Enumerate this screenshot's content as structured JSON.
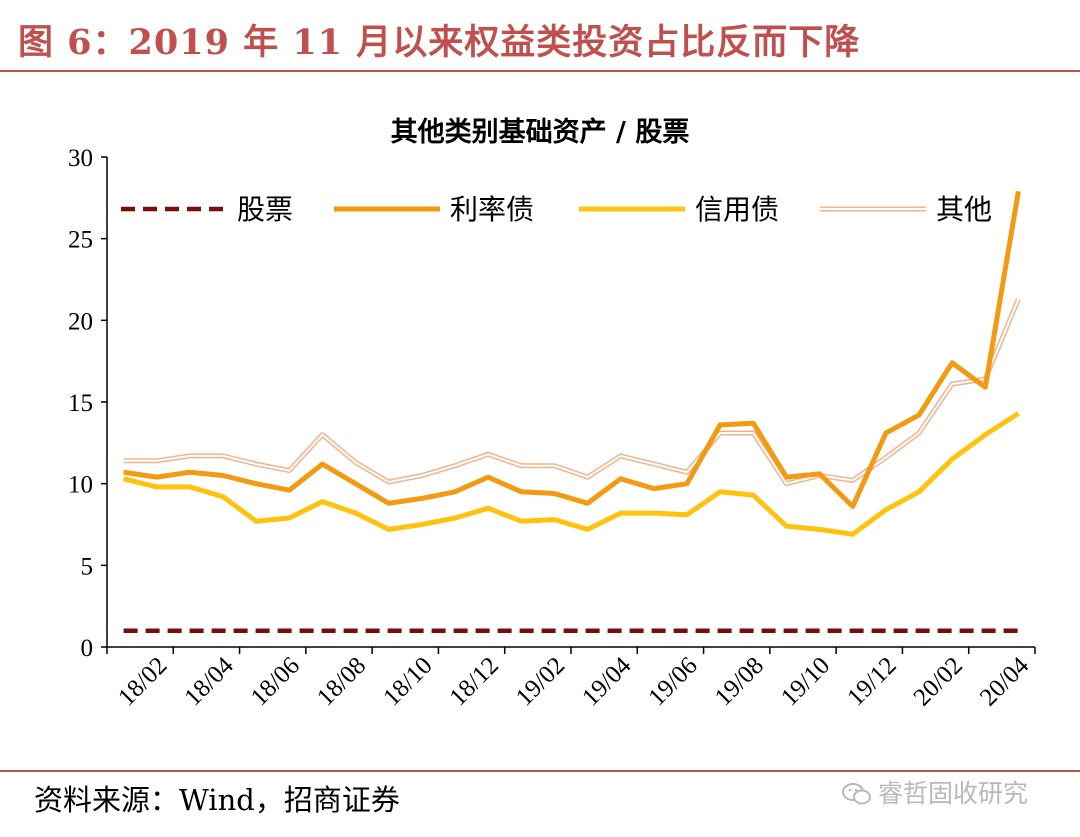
{
  "figure": {
    "title": "图 6：2019 年 11 月以来权益类投资占比反而下降",
    "source": "资料来源：Wind，招商证券",
    "watermark": "睿哲固收研究",
    "watermark_icon": "wechat-icon"
  },
  "chart_data": {
    "type": "line",
    "title": "其他类别基础资产 / 股票",
    "xlabel": "",
    "ylabel": "",
    "ylim": [
      0,
      30
    ],
    "yticks": [
      "0",
      "5",
      "10",
      "15",
      "20",
      "25",
      "30"
    ],
    "x": [
      "18/01",
      "18/02",
      "18/03",
      "18/04",
      "18/05",
      "18/06",
      "18/07",
      "18/08",
      "18/09",
      "18/10",
      "18/11",
      "18/12",
      "19/01",
      "19/02",
      "19/03",
      "19/04",
      "19/05",
      "19/06",
      "19/07",
      "19/08",
      "19/09",
      "19/10",
      "19/11",
      "19/12",
      "20/01",
      "20/02",
      "20/03",
      "20/04"
    ],
    "xtick_labels": [
      "18/02",
      "18/04",
      "18/06",
      "18/08",
      "18/10",
      "18/12",
      "19/02",
      "19/04",
      "19/06",
      "19/08",
      "19/10",
      "19/12",
      "20/02",
      "20/04"
    ],
    "grid": false,
    "legend_position": "top",
    "series": [
      {
        "name": "股票",
        "color": "#7b0c0c",
        "style": "dashed",
        "values": [
          1,
          1,
          1,
          1,
          1,
          1,
          1,
          1,
          1,
          1,
          1,
          1,
          1,
          1,
          1,
          1,
          1,
          1,
          1,
          1,
          1,
          1,
          1,
          1,
          1,
          1,
          1,
          1
        ]
      },
      {
        "name": "利率债",
        "color": "#f39a12",
        "style": "solid",
        "values": [
          10.7,
          10.4,
          10.7,
          10.5,
          10.0,
          9.6,
          11.2,
          10.0,
          8.8,
          9.1,
          9.5,
          10.4,
          9.5,
          9.4,
          8.8,
          10.3,
          9.7,
          10.0,
          13.6,
          13.7,
          10.4,
          10.6,
          8.6,
          13.1,
          14.2,
          17.4,
          15.9,
          27.9
        ]
      },
      {
        "name": "信用债",
        "color": "#ffc20e",
        "style": "solid",
        "values": [
          10.3,
          9.8,
          9.8,
          9.2,
          7.7,
          7.9,
          8.9,
          8.2,
          7.2,
          7.5,
          7.9,
          8.5,
          7.7,
          7.8,
          7.2,
          8.2,
          8.2,
          8.1,
          9.5,
          9.3,
          7.4,
          7.2,
          6.9,
          8.4,
          9.5,
          11.5,
          13.0,
          14.3
        ]
      },
      {
        "name": "其他",
        "color": "#f2b48c",
        "style": "double",
        "values": [
          11.4,
          11.4,
          11.7,
          11.7,
          11.2,
          10.8,
          13.0,
          11.3,
          10.1,
          10.5,
          11.1,
          11.8,
          11.1,
          11.1,
          10.4,
          11.7,
          11.2,
          10.7,
          13.1,
          13.1,
          10.0,
          10.5,
          10.2,
          11.6,
          13.1,
          16.1,
          16.4,
          21.3
        ]
      }
    ]
  }
}
